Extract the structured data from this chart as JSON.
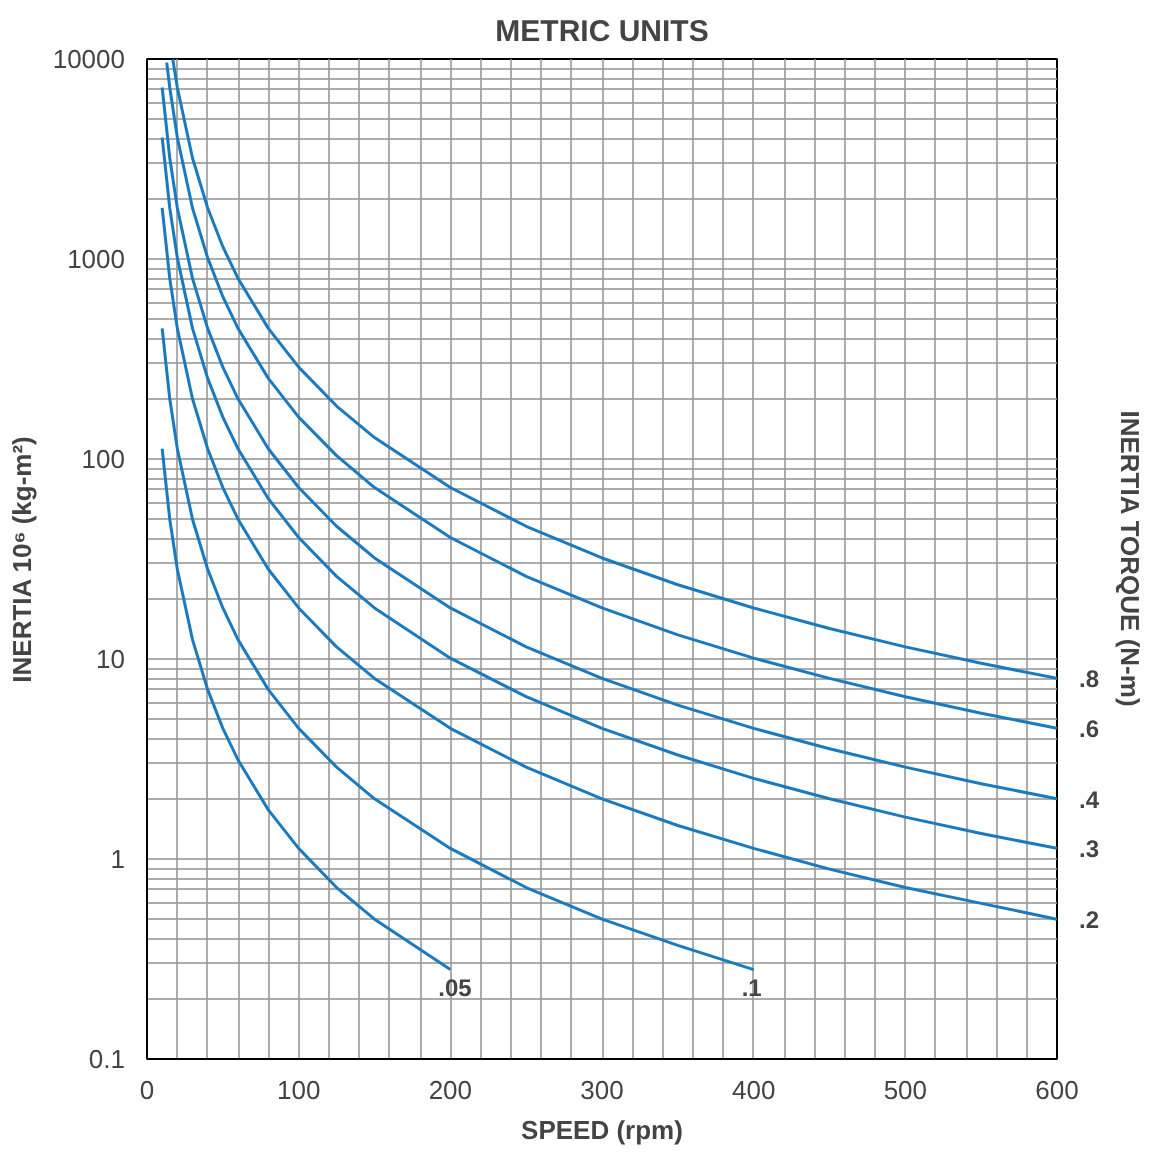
{
  "chart_data": {
    "type": "line",
    "title": "METRIC UNITS",
    "xlabel": "SPEED (rpm)",
    "ylabel": "INERTIA 10⁶ (kg-m²)",
    "y2label": "INERTIA TORQUE (N-m)",
    "log": "y",
    "grid": true,
    "legend": false,
    "marker": "none",
    "line_style": "solid",
    "xlim": [
      0,
      600
    ],
    "ylim": [
      0.1,
      10000
    ],
    "xticks": [
      0,
      {
        "value": 20,
        "label": null
      },
      {
        "value": 40,
        "label": null
      },
      {
        "value": 60,
        "label": null
      },
      {
        "value": 80,
        "label": null
      },
      100,
      {
        "value": 120,
        "label": null
      },
      {
        "value": 140,
        "label": null
      },
      {
        "value": 160,
        "label": null
      },
      {
        "value": 180,
        "label": null
      },
      200,
      {
        "value": 220,
        "label": null
      },
      {
        "value": 240,
        "label": null
      },
      {
        "value": 260,
        "label": null
      },
      {
        "value": 280,
        "label": null
      },
      300,
      {
        "value": 320,
        "label": null
      },
      {
        "value": 340,
        "label": null
      },
      {
        "value": 360,
        "label": null
      },
      {
        "value": 380,
        "label": null
      },
      400,
      {
        "value": 420,
        "label": null
      },
      {
        "value": 440,
        "label": null
      },
      {
        "value": 460,
        "label": null
      },
      {
        "value": 480,
        "label": null
      },
      500,
      {
        "value": 520,
        "label": null
      },
      {
        "value": 540,
        "label": null
      },
      {
        "value": 560,
        "label": null
      },
      {
        "value": 580,
        "label": null
      },
      600
    ],
    "yticks": [
      0.1,
      {
        "value": 0.2,
        "label": null
      },
      {
        "value": 0.3,
        "label": null
      },
      {
        "value": 0.4,
        "label": null
      },
      {
        "value": 0.5,
        "label": null
      },
      {
        "value": 0.6,
        "label": null
      },
      {
        "value": 0.7,
        "label": null
      },
      {
        "value": 0.8,
        "label": null
      },
      {
        "value": 0.9,
        "label": null
      },
      1,
      {
        "value": 2,
        "label": null
      },
      {
        "value": 3,
        "label": null
      },
      {
        "value": 4,
        "label": null
      },
      {
        "value": 5,
        "label": null
      },
      {
        "value": 6,
        "label": null
      },
      {
        "value": 7,
        "label": null
      },
      {
        "value": 8,
        "label": null
      },
      {
        "value": 9,
        "label": null
      },
      10,
      {
        "value": 20,
        "label": null
      },
      {
        "value": 30,
        "label": null
      },
      {
        "value": 40,
        "label": null
      },
      {
        "value": 50,
        "label": null
      },
      {
        "value": 60,
        "label": null
      },
      {
        "value": 70,
        "label": null
      },
      {
        "value": 80,
        "label": null
      },
      {
        "value": 90,
        "label": null
      },
      100,
      {
        "value": 200,
        "label": null
      },
      {
        "value": 300,
        "label": null
      },
      {
        "value": 400,
        "label": null
      },
      {
        "value": 500,
        "label": null
      },
      {
        "value": 600,
        "label": null
      },
      {
        "value": 700,
        "label": null
      },
      {
        "value": 800,
        "label": null
      },
      {
        "value": 900,
        "label": null
      },
      1000,
      {
        "value": 2000,
        "label": null
      },
      {
        "value": 3000,
        "label": null
      },
      {
        "value": 4000,
        "label": null
      },
      {
        "value": 5000,
        "label": null
      },
      {
        "value": 6000,
        "label": null
      },
      {
        "value": 7000,
        "label": null
      },
      {
        "value": 8000,
        "label": null
      },
      {
        "value": 9000,
        "label": null
      },
      10000
    ],
    "series": [
      {
        "name": ".05",
        "color": "#1a7abf",
        "x": [
          10,
          15,
          20,
          30,
          40,
          50,
          60,
          80,
          100,
          125,
          150,
          200
        ],
        "values": [
          112.5,
          50,
          28.1,
          12.5,
          7.03,
          4.5,
          3.13,
          1.76,
          1.13,
          0.72,
          0.5,
          0.28
        ]
      },
      {
        "name": ".1",
        "color": "#1a7abf",
        "x": [
          10,
          15,
          20,
          30,
          40,
          50,
          60,
          80,
          100,
          125,
          150,
          200,
          250,
          300,
          350,
          400
        ],
        "values": [
          450,
          200,
          112.5,
          50,
          28.1,
          18,
          12.5,
          7.03,
          4.5,
          2.88,
          2,
          1.13,
          0.72,
          0.5,
          0.37,
          0.28
        ]
      },
      {
        "name": ".2",
        "color": "#1a7abf",
        "x": [
          10,
          15,
          20,
          30,
          40,
          50,
          60,
          80,
          100,
          125,
          150,
          200,
          250,
          300,
          350,
          400,
          450,
          500,
          550,
          600
        ],
        "values": [
          1800,
          800,
          450,
          200,
          112.5,
          72,
          50,
          28.1,
          18,
          11.5,
          8,
          4.5,
          2.88,
          2,
          1.47,
          1.13,
          0.89,
          0.72,
          0.6,
          0.5
        ]
      },
      {
        "name": ".3",
        "color": "#1a7abf",
        "x": [
          10,
          15,
          20,
          30,
          40,
          50,
          60,
          80,
          100,
          125,
          150,
          200,
          250,
          300,
          350,
          400,
          450,
          500,
          550,
          600
        ],
        "values": [
          4050,
          1800,
          1013,
          450,
          253,
          162,
          112.5,
          63.3,
          40.5,
          25.9,
          18,
          10.1,
          6.48,
          4.5,
          3.31,
          2.53,
          2,
          1.62,
          1.34,
          1.13
        ]
      },
      {
        "name": ".4",
        "color": "#1a7abf",
        "x": [
          10,
          15,
          20,
          30,
          40,
          50,
          60,
          80,
          100,
          125,
          150,
          200,
          250,
          300,
          350,
          400,
          450,
          500,
          550,
          600
        ],
        "values": [
          7200,
          3200,
          1800,
          800,
          450,
          288,
          200,
          112.5,
          72,
          46.1,
          32,
          18,
          11.5,
          8,
          5.88,
          4.5,
          3.56,
          2.88,
          2.38,
          2
        ]
      },
      {
        "name": ".6",
        "color": "#1a7abf",
        "x": [
          13,
          15,
          20,
          30,
          40,
          50,
          60,
          80,
          100,
          125,
          150,
          200,
          250,
          300,
          350,
          400,
          450,
          500,
          550,
          600
        ],
        "values": [
          9586,
          7200,
          4050,
          1800,
          1013,
          648,
          450,
          253,
          162,
          104,
          72,
          40.5,
          25.9,
          18,
          13.2,
          10.1,
          8,
          6.48,
          5.36,
          4.5
        ]
      },
      {
        "name": ".8",
        "color": "#1a7abf",
        "x": [
          17,
          20,
          30,
          40,
          50,
          60,
          80,
          100,
          125,
          150,
          200,
          250,
          300,
          350,
          400,
          450,
          500,
          550,
          600
        ],
        "values": [
          9965,
          7200,
          3200,
          1800,
          1152,
          800,
          450,
          288,
          184,
          128,
          72,
          46.1,
          32,
          23.5,
          18,
          14.2,
          11.5,
          9.52,
          8
        ]
      }
    ]
  }
}
